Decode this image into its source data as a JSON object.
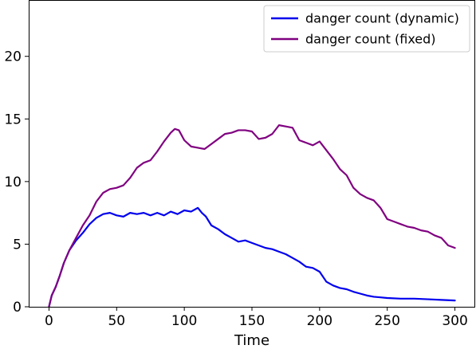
{
  "chart_data": {
    "type": "line",
    "title": "",
    "xlabel": "Time",
    "ylabel": "",
    "xlim": [
      -15,
      315
    ],
    "ylim": [
      0,
      24.5
    ],
    "xticks": [
      0,
      50,
      100,
      150,
      200,
      250,
      300
    ],
    "yticks": [
      0,
      5,
      10,
      15,
      20
    ],
    "grid": false,
    "legend_position": "top-right",
    "series": [
      {
        "name": "danger count (dynamic)",
        "color": "#0000ee",
        "points": [
          [
            0,
            0
          ],
          [
            2,
            0.9
          ],
          [
            5,
            1.6
          ],
          [
            8,
            2.5
          ],
          [
            11,
            3.5
          ],
          [
            15,
            4.5
          ],
          [
            20,
            5.3
          ],
          [
            25,
            5.9
          ],
          [
            30,
            6.6
          ],
          [
            35,
            7.1
          ],
          [
            40,
            7.4
          ],
          [
            45,
            7.5
          ],
          [
            50,
            7.3
          ],
          [
            55,
            7.2
          ],
          [
            60,
            7.5
          ],
          [
            65,
            7.4
          ],
          [
            70,
            7.5
          ],
          [
            75,
            7.3
          ],
          [
            80,
            7.5
          ],
          [
            85,
            7.3
          ],
          [
            90,
            7.6
          ],
          [
            95,
            7.4
          ],
          [
            100,
            7.7
          ],
          [
            105,
            7.6
          ],
          [
            110,
            7.9
          ],
          [
            113,
            7.5
          ],
          [
            116,
            7.2
          ],
          [
            120,
            6.5
          ],
          [
            125,
            6.2
          ],
          [
            130,
            5.8
          ],
          [
            135,
            5.5
          ],
          [
            140,
            5.2
          ],
          [
            145,
            5.3
          ],
          [
            150,
            5.1
          ],
          [
            155,
            4.9
          ],
          [
            160,
            4.7
          ],
          [
            165,
            4.6
          ],
          [
            170,
            4.4
          ],
          [
            175,
            4.2
          ],
          [
            180,
            3.9
          ],
          [
            185,
            3.6
          ],
          [
            190,
            3.2
          ],
          [
            195,
            3.1
          ],
          [
            200,
            2.8
          ],
          [
            205,
            2.0
          ],
          [
            210,
            1.7
          ],
          [
            215,
            1.5
          ],
          [
            220,
            1.4
          ],
          [
            225,
            1.2
          ],
          [
            230,
            1.05
          ],
          [
            235,
            0.9
          ],
          [
            240,
            0.8
          ],
          [
            245,
            0.75
          ],
          [
            250,
            0.7
          ],
          [
            260,
            0.65
          ],
          [
            270,
            0.65
          ],
          [
            280,
            0.6
          ],
          [
            290,
            0.55
          ],
          [
            300,
            0.5
          ]
        ]
      },
      {
        "name": "danger count (fixed)",
        "color": "#800080",
        "points": [
          [
            0,
            0
          ],
          [
            2,
            0.9
          ],
          [
            5,
            1.6
          ],
          [
            8,
            2.5
          ],
          [
            11,
            3.5
          ],
          [
            15,
            4.5
          ],
          [
            20,
            5.5
          ],
          [
            25,
            6.5
          ],
          [
            30,
            7.3
          ],
          [
            35,
            8.4
          ],
          [
            40,
            9.1
          ],
          [
            45,
            9.4
          ],
          [
            50,
            9.5
          ],
          [
            55,
            9.7
          ],
          [
            60,
            10.3
          ],
          [
            65,
            11.1
          ],
          [
            70,
            11.5
          ],
          [
            75,
            11.7
          ],
          [
            80,
            12.4
          ],
          [
            85,
            13.2
          ],
          [
            90,
            13.9
          ],
          [
            93,
            14.2
          ],
          [
            96,
            14.1
          ],
          [
            100,
            13.3
          ],
          [
            105,
            12.8
          ],
          [
            110,
            12.7
          ],
          [
            115,
            12.6
          ],
          [
            120,
            13.0
          ],
          [
            125,
            13.4
          ],
          [
            130,
            13.8
          ],
          [
            135,
            13.9
          ],
          [
            140,
            14.1
          ],
          [
            145,
            14.1
          ],
          [
            150,
            14.0
          ],
          [
            155,
            13.4
          ],
          [
            160,
            13.5
          ],
          [
            165,
            13.8
          ],
          [
            170,
            14.5
          ],
          [
            175,
            14.4
          ],
          [
            180,
            14.3
          ],
          [
            185,
            13.3
          ],
          [
            190,
            13.1
          ],
          [
            195,
            12.9
          ],
          [
            200,
            13.2
          ],
          [
            205,
            12.5
          ],
          [
            210,
            11.8
          ],
          [
            215,
            11.0
          ],
          [
            220,
            10.5
          ],
          [
            225,
            9.5
          ],
          [
            230,
            9.0
          ],
          [
            235,
            8.7
          ],
          [
            240,
            8.5
          ],
          [
            245,
            7.9
          ],
          [
            250,
            7.0
          ],
          [
            255,
            6.8
          ],
          [
            260,
            6.6
          ],
          [
            265,
            6.4
          ],
          [
            270,
            6.3
          ],
          [
            275,
            6.1
          ],
          [
            280,
            6.0
          ],
          [
            285,
            5.7
          ],
          [
            290,
            5.5
          ],
          [
            295,
            4.9
          ],
          [
            300,
            4.7
          ]
        ]
      }
    ]
  }
}
